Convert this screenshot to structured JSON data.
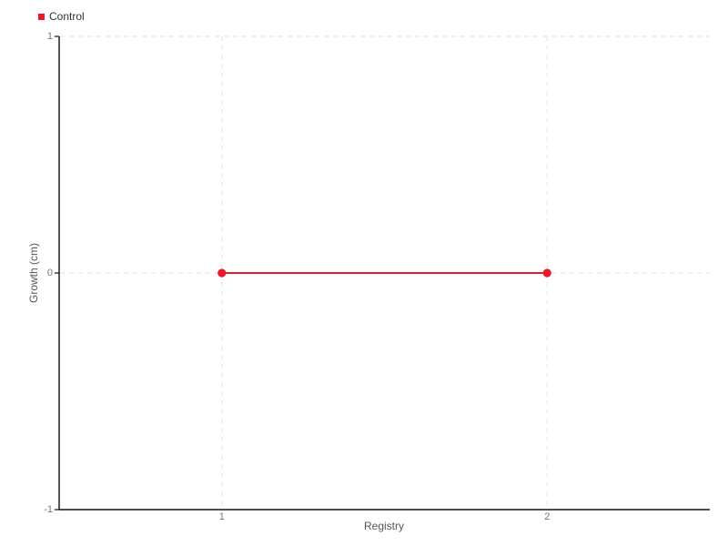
{
  "chart_data": {
    "type": "line",
    "title": "",
    "xlabel": "Registry",
    "ylabel": "Growth (cm)",
    "xlim": [
      0.5,
      2.5
    ],
    "ylim": [
      -1,
      1
    ],
    "xticks": [
      1,
      2
    ],
    "xtick_labels": [
      "1",
      "2"
    ],
    "yticks": [
      -1,
      0,
      1
    ],
    "ytick_labels": [
      "-1",
      "0",
      "1"
    ],
    "grid": true,
    "legend_position": "top-left",
    "series": [
      {
        "name": "Control",
        "color": "#e8192c",
        "x": [
          1,
          2
        ],
        "y": [
          0,
          0
        ],
        "marker": "circle"
      }
    ],
    "style": {
      "background": "#ffffff",
      "grid_color": "#e2e2e2",
      "axis_color": "#111111",
      "tick_label_color": "#777777",
      "axis_label_color": "#555555",
      "legend_text_color": "#333333",
      "line_width": 2,
      "marker_radius": 4.6
    }
  }
}
